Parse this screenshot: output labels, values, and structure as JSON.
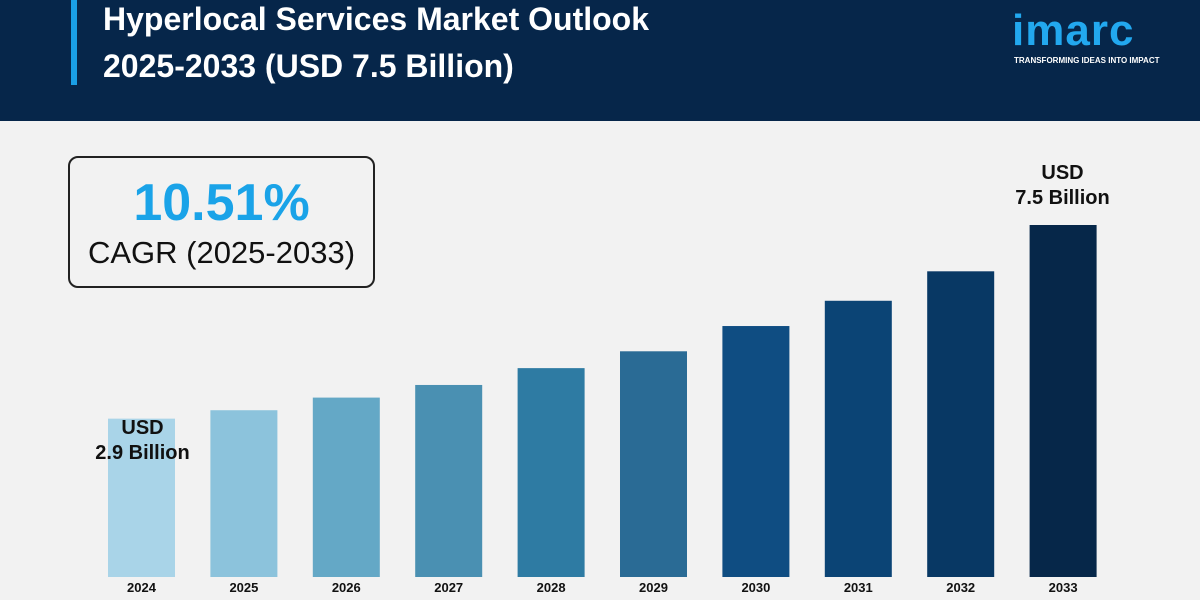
{
  "header": {
    "title_line1": "Hyperlocal Services Market Outlook",
    "title_line2": "2025-2033 (USD 7.5 Billion)",
    "background": "#06264a",
    "accent": "#1a9fe6"
  },
  "logo": {
    "word": "imarc",
    "tagline": "TRANSFORMING IDEAS INTO IMPACT"
  },
  "cagr": {
    "value": "10.51%",
    "label": "CAGR (2025-2033)"
  },
  "annotations": {
    "start": {
      "line1": "USD",
      "line2": "2.9 Billion"
    },
    "end": {
      "line1": "USD",
      "line2": "7.5 Billion"
    }
  },
  "chart_data": {
    "type": "bar",
    "title": "",
    "xlabel": "",
    "ylabel": "",
    "categories": [
      "2024",
      "2025",
      "2026",
      "2027",
      "2028",
      "2029",
      "2030",
      "2031",
      "2032",
      "2033"
    ],
    "values": [
      2.9,
      3.1,
      3.4,
      3.7,
      4.1,
      4.5,
      5.1,
      5.7,
      6.4,
      7.5
    ],
    "value_unit": "USD Billion",
    "ylim": [
      1.3,
      7.5
    ],
    "grid": false,
    "colors": [
      "#a9d4e8",
      "#8cc3dc",
      "#64a8c6",
      "#4a90b2",
      "#2e7ba3",
      "#2a6b95",
      "#0f4d82",
      "#0b4475",
      "#083864",
      "#062749"
    ]
  }
}
